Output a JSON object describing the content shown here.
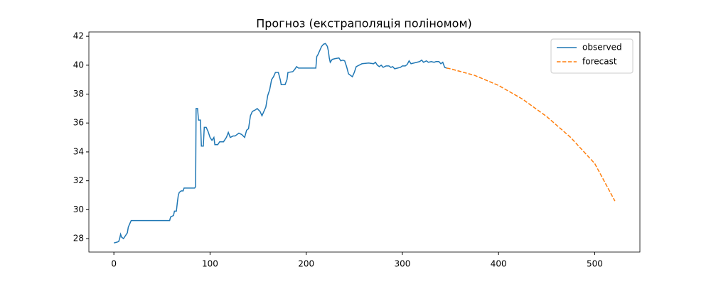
{
  "chart_data": {
    "type": "line",
    "title": "Прогноз (екстраполяція поліномом)",
    "xlim": [
      -26,
      547
    ],
    "xticks": [
      0,
      100,
      200,
      300,
      400,
      500
    ],
    "ylim": [
      27.07,
      42.3
    ],
    "yticks": [
      28,
      30,
      32,
      34,
      36,
      38,
      40,
      42
    ],
    "legend": "upper right",
    "series": [
      {
        "name": "observed",
        "color": "#1f77b4",
        "dash": false,
        "x": [
          0,
          3,
          5,
          6,
          7,
          8,
          10,
          12,
          14,
          15,
          17,
          18,
          25,
          40,
          58,
          59,
          62,
          63,
          65,
          66,
          67,
          68,
          70,
          72,
          73,
          80,
          84,
          85,
          85.5,
          87,
          88,
          90,
          91,
          93,
          94,
          96,
          98,
          100,
          102,
          104,
          105,
          108,
          110,
          114,
          117,
          119,
          121,
          124,
          126,
          130,
          133,
          136,
          138,
          140,
          142,
          144,
          147,
          149,
          152,
          154,
          156,
          158,
          160,
          162,
          164,
          166,
          168,
          171,
          173,
          174,
          178,
          180,
          181,
          186,
          188,
          190,
          192,
          210,
          211,
          212,
          214,
          216,
          218,
          220,
          222,
          223,
          224,
          225,
          227,
          230,
          234,
          236,
          238,
          240,
          242,
          244,
          246,
          248,
          250,
          252,
          255,
          258,
          265,
          270,
          272,
          274,
          276,
          278,
          280,
          283,
          286,
          288,
          290,
          292,
          295,
          298,
          300,
          303,
          305,
          307,
          309,
          312,
          315,
          318,
          320,
          322,
          325,
          327,
          330,
          333,
          335,
          338,
          340,
          342,
          344,
          346
        ],
        "values": [
          27.7,
          27.75,
          27.8,
          28.0,
          28.3,
          28.1,
          28.0,
          28.2,
          28.4,
          28.8,
          29.1,
          29.25,
          29.25,
          29.25,
          29.25,
          29.5,
          29.6,
          29.9,
          29.9,
          30.5,
          31.0,
          31.2,
          31.3,
          31.3,
          31.5,
          31.5,
          31.5,
          31.6,
          37.0,
          37.0,
          36.2,
          36.2,
          34.4,
          34.4,
          35.7,
          35.7,
          35.4,
          35.0,
          34.8,
          35.0,
          34.5,
          34.5,
          34.7,
          34.7,
          35.0,
          35.35,
          35.0,
          35.1,
          35.1,
          35.3,
          35.2,
          35.0,
          35.5,
          35.6,
          36.5,
          36.8,
          36.9,
          37.0,
          36.8,
          36.5,
          36.8,
          37.1,
          37.9,
          38.3,
          39.0,
          39.2,
          39.5,
          39.5,
          39.0,
          38.65,
          38.65,
          39.0,
          39.5,
          39.55,
          39.7,
          39.9,
          39.8,
          39.8,
          40.6,
          40.7,
          41.0,
          41.3,
          41.45,
          41.5,
          41.3,
          41.0,
          40.5,
          40.2,
          40.4,
          40.45,
          40.5,
          40.3,
          40.35,
          40.3,
          39.9,
          39.4,
          39.3,
          39.2,
          39.5,
          39.9,
          40.0,
          40.1,
          40.15,
          40.1,
          40.2,
          40.0,
          39.9,
          40.0,
          39.85,
          39.95,
          39.95,
          39.85,
          39.9,
          39.75,
          39.8,
          39.85,
          39.95,
          39.95,
          40.05,
          40.3,
          40.1,
          40.15,
          40.2,
          40.25,
          40.35,
          40.2,
          40.3,
          40.2,
          40.25,
          40.2,
          40.25,
          40.25,
          40.1,
          40.2,
          39.85,
          39.8
        ]
      },
      {
        "name": "forecast",
        "color": "#ff7f0e",
        "dash": true,
        "x": [
          346,
          350,
          375,
          400,
          425,
          450,
          475,
          500,
          521
        ],
        "values": [
          39.8,
          39.75,
          39.3,
          38.6,
          37.65,
          36.45,
          35.0,
          33.2,
          30.6
        ]
      }
    ]
  }
}
